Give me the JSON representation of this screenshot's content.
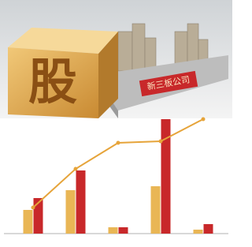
{
  "illustration": {
    "cube_text": "股",
    "sign_text": "新三板公司"
  },
  "chart_data": {
    "type": "bar",
    "categories": [
      null,
      null,
      null,
      null,
      null
    ],
    "series": [
      {
        "color": "#e9b655",
        "values": [
          30,
          55,
          8,
          60,
          5
        ]
      },
      {
        "color": "#c8282a",
        "values": [
          45,
          80,
          8,
          145,
          12
        ]
      },
      {
        "type": "line",
        "color": "#e6a43a",
        "values": [
          33,
          82,
          115,
          117,
          145
        ]
      }
    ]
  }
}
